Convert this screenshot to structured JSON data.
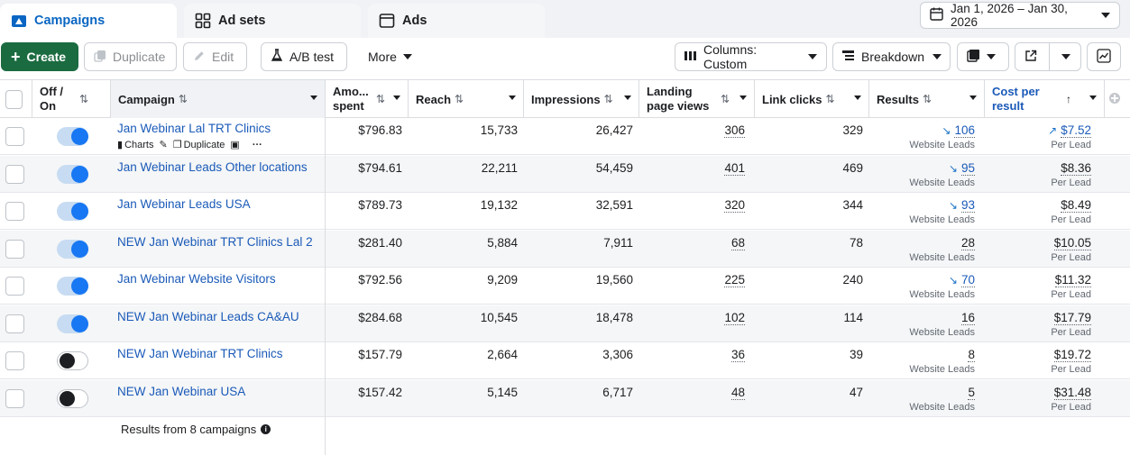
{
  "tabs": [
    {
      "label": "Campaigns",
      "icon": "campaigns-folder-icon",
      "active": true
    },
    {
      "label": "Ad sets",
      "icon": "grid-icon",
      "active": false
    },
    {
      "label": "Ads",
      "icon": "ad-window-icon",
      "active": false
    }
  ],
  "date_range": "Jan 1, 2026 – Jan 30, 2026",
  "toolbar": {
    "create": "Create",
    "duplicate": "Duplicate",
    "edit": "Edit",
    "abtest": "A/B test",
    "more": "More",
    "columns": "Columns: Custom",
    "breakdown": "Breakdown"
  },
  "columns": {
    "off_on": "Off / On",
    "campaign": "Campaign",
    "amount": "Amo... spent",
    "reach": "Reach",
    "impressions": "Impressions",
    "landing": "Landing page views",
    "clicks": "Link clicks",
    "results": "Results",
    "cost": "Cost per result"
  },
  "row_actions": {
    "charts": "Charts",
    "duplicate": "Duplicate"
  },
  "rows": [
    {
      "name": "Jan Webinar Lal TRT Clinics",
      "on": true,
      "amount": "$796.83",
      "reach": "15,733",
      "impressions": "26,427",
      "landing": "306",
      "clicks": "329",
      "results": "106",
      "results_sub": "Website Leads",
      "results_trend": "down",
      "cost": "$7.52",
      "cost_sub": "Per Lead",
      "cost_trend": "up"
    },
    {
      "name": "Jan Webinar Leads Other locations",
      "on": true,
      "amount": "$794.61",
      "reach": "22,211",
      "impressions": "54,459",
      "landing": "401",
      "clicks": "469",
      "results": "95",
      "results_sub": "Website Leads",
      "results_trend": "down",
      "cost": "$8.36",
      "cost_sub": "Per Lead",
      "cost_trend": ""
    },
    {
      "name": "Jan Webinar Leads USA",
      "on": true,
      "amount": "$789.73",
      "reach": "19,132",
      "impressions": "32,591",
      "landing": "320",
      "clicks": "344",
      "results": "93",
      "results_sub": "Website Leads",
      "results_trend": "down",
      "cost": "$8.49",
      "cost_sub": "Per Lead",
      "cost_trend": ""
    },
    {
      "name": "NEW Jan Webinar TRT Clinics Lal 2",
      "on": true,
      "amount": "$281.40",
      "reach": "5,884",
      "impressions": "7,911",
      "landing": "68",
      "clicks": "78",
      "results": "28",
      "results_sub": "Website Leads",
      "results_trend": "",
      "cost": "$10.05",
      "cost_sub": "Per Lead",
      "cost_trend": ""
    },
    {
      "name": "Jan Webinar Website Visitors",
      "on": true,
      "amount": "$792.56",
      "reach": "9,209",
      "impressions": "19,560",
      "landing": "225",
      "clicks": "240",
      "results": "70",
      "results_sub": "Website Leads",
      "results_trend": "down",
      "cost": "$11.32",
      "cost_sub": "Per Lead",
      "cost_trend": ""
    },
    {
      "name": "NEW Jan Webinar Leads CA&AU",
      "on": true,
      "amount": "$284.68",
      "reach": "10,545",
      "impressions": "18,478",
      "landing": "102",
      "clicks": "114",
      "results": "16",
      "results_sub": "Website Leads",
      "results_trend": "",
      "cost": "$17.79",
      "cost_sub": "Per Lead",
      "cost_trend": ""
    },
    {
      "name": "NEW Jan Webinar TRT Clinics",
      "on": false,
      "amount": "$157.79",
      "reach": "2,664",
      "impressions": "3,306",
      "landing": "36",
      "clicks": "39",
      "results": "8",
      "results_sub": "Website Leads",
      "results_trend": "",
      "cost": "$19.72",
      "cost_sub": "Per Lead",
      "cost_trend": ""
    },
    {
      "name": "NEW Jan Webinar USA",
      "on": false,
      "amount": "$157.42",
      "reach": "5,145",
      "impressions": "6,717",
      "landing": "48",
      "clicks": "47",
      "results": "5",
      "results_sub": "Website Leads",
      "results_trend": "",
      "cost": "$31.48",
      "cost_sub": "Per Lead",
      "cost_trend": ""
    }
  ],
  "footer": {
    "summary": "Results from 8 campaigns"
  },
  "colors": {
    "accent": "#1877f2",
    "create_button": "#1b6b40",
    "link": "#1a5ab8"
  }
}
